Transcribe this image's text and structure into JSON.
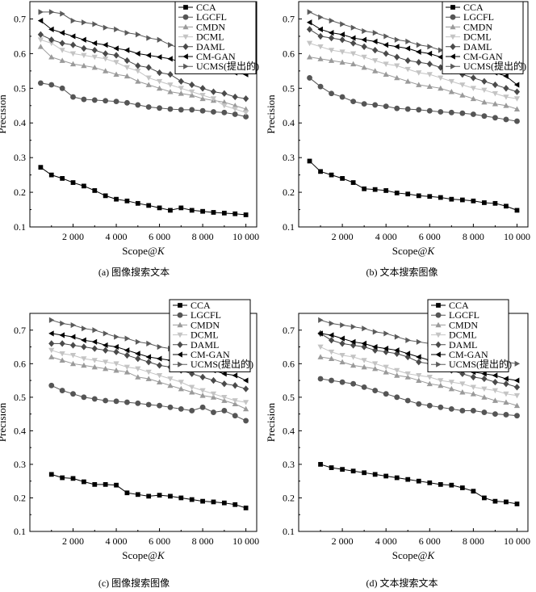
{
  "chart_data": [
    {
      "type": "line",
      "caption": "(a) 图像搜索文本",
      "xlabel": "Scope@K",
      "ylabel": "Precision",
      "xlim": [
        0,
        10500
      ],
      "ylim": [
        0.1,
        0.75
      ],
      "xticks": [
        "2 000",
        "4 000",
        "6 000",
        "8 000",
        "10 000"
      ],
      "yticks": [
        "0.1",
        "0.2",
        "0.3",
        "0.4",
        "0.5",
        "0.6",
        "0.7"
      ],
      "legend": "top-right",
      "grid": false,
      "x": [
        500,
        1000,
        1500,
        2000,
        2500,
        3000,
        3500,
        4000,
        4500,
        5000,
        5500,
        6000,
        6500,
        7000,
        7500,
        8000,
        8500,
        9000,
        9500,
        10000
      ],
      "series": [
        {
          "name": "CCA",
          "values": [
            0.272,
            0.25,
            0.24,
            0.228,
            0.218,
            0.205,
            0.19,
            0.18,
            0.175,
            0.168,
            0.162,
            0.155,
            0.148,
            0.155,
            0.148,
            0.145,
            0.142,
            0.14,
            0.138,
            0.135
          ]
        },
        {
          "name": "LGCFL",
          "values": [
            0.515,
            0.51,
            0.5,
            0.475,
            0.468,
            0.466,
            0.464,
            0.462,
            0.458,
            0.452,
            0.446,
            0.443,
            0.44,
            0.438,
            0.438,
            0.435,
            0.432,
            0.43,
            0.425,
            0.418
          ]
        },
        {
          "name": "CMDN",
          "values": [
            0.62,
            0.59,
            0.58,
            0.57,
            0.565,
            0.56,
            0.55,
            0.54,
            0.535,
            0.52,
            0.51,
            0.5,
            0.49,
            0.485,
            0.48,
            0.47,
            0.465,
            0.46,
            0.45,
            0.44
          ]
        },
        {
          "name": "DCML",
          "values": [
            0.64,
            0.63,
            0.61,
            0.6,
            0.595,
            0.59,
            0.585,
            0.575,
            0.56,
            0.55,
            0.53,
            0.52,
            0.51,
            0.5,
            0.49,
            0.48,
            0.47,
            0.45,
            0.44,
            0.43
          ]
        },
        {
          "name": "DAML",
          "values": [
            0.655,
            0.64,
            0.63,
            0.625,
            0.615,
            0.61,
            0.6,
            0.595,
            0.58,
            0.565,
            0.56,
            0.545,
            0.54,
            0.52,
            0.51,
            0.5,
            0.49,
            0.485,
            0.475,
            0.47
          ]
        },
        {
          "name": "CM-GAN",
          "values": [
            0.695,
            0.67,
            0.66,
            0.65,
            0.64,
            0.63,
            0.625,
            0.615,
            0.61,
            0.6,
            0.595,
            0.59,
            0.585,
            0.575,
            0.57,
            0.565,
            0.56,
            0.55,
            0.545,
            0.54
          ]
        },
        {
          "name": "UCMS(提出的)",
          "values": [
            0.72,
            0.72,
            0.715,
            0.695,
            0.69,
            0.685,
            0.675,
            0.67,
            0.66,
            0.655,
            0.645,
            0.64,
            0.625,
            0.615,
            0.605,
            0.6,
            0.595,
            0.585,
            0.58,
            0.575
          ]
        }
      ]
    },
    {
      "type": "line",
      "caption": "(b) 文本搜索图像",
      "xlabel": "Scope@K",
      "ylabel": "Precision",
      "xlim": [
        0,
        10500
      ],
      "ylim": [
        0.1,
        0.75
      ],
      "xticks": [
        "2 000",
        "4 000",
        "6 000",
        "8 000",
        "10 000"
      ],
      "yticks": [
        "0.1",
        "0.2",
        "0.3",
        "0.4",
        "0.5",
        "0.6",
        "0.7"
      ],
      "legend": "top-right",
      "grid": false,
      "x": [
        500,
        1000,
        1500,
        2000,
        2500,
        3000,
        3500,
        4000,
        4500,
        5000,
        5500,
        6000,
        6500,
        7000,
        7500,
        8000,
        8500,
        9000,
        9500,
        10000
      ],
      "series": [
        {
          "name": "CCA",
          "values": [
            0.29,
            0.26,
            0.25,
            0.24,
            0.228,
            0.21,
            0.208,
            0.205,
            0.198,
            0.195,
            0.19,
            0.188,
            0.185,
            0.18,
            0.178,
            0.175,
            0.17,
            0.168,
            0.16,
            0.148
          ]
        },
        {
          "name": "LGCFL",
          "values": [
            0.53,
            0.505,
            0.485,
            0.475,
            0.462,
            0.455,
            0.452,
            0.448,
            0.442,
            0.44,
            0.438,
            0.435,
            0.432,
            0.43,
            0.428,
            0.425,
            0.42,
            0.415,
            0.41,
            0.405
          ]
        },
        {
          "name": "CMDN",
          "values": [
            0.59,
            0.585,
            0.58,
            0.575,
            0.57,
            0.56,
            0.55,
            0.54,
            0.53,
            0.52,
            0.51,
            0.505,
            0.5,
            0.49,
            0.48,
            0.47,
            0.46,
            0.455,
            0.45,
            0.44
          ]
        },
        {
          "name": "DCML",
          "values": [
            0.63,
            0.62,
            0.61,
            0.605,
            0.6,
            0.59,
            0.58,
            0.57,
            0.565,
            0.555,
            0.545,
            0.54,
            0.53,
            0.52,
            0.51,
            0.5,
            0.495,
            0.485,
            0.475,
            0.47
          ]
        },
        {
          "name": "DAML",
          "values": [
            0.67,
            0.65,
            0.645,
            0.64,
            0.63,
            0.62,
            0.61,
            0.6,
            0.59,
            0.58,
            0.575,
            0.57,
            0.56,
            0.55,
            0.54,
            0.53,
            0.52,
            0.51,
            0.5,
            0.49
          ]
        },
        {
          "name": "CM-GAN",
          "values": [
            0.69,
            0.67,
            0.66,
            0.655,
            0.645,
            0.64,
            0.635,
            0.625,
            0.62,
            0.615,
            0.605,
            0.6,
            0.59,
            0.58,
            0.575,
            0.565,
            0.555,
            0.545,
            0.535,
            0.51
          ]
        },
        {
          "name": "UCMS(提出的)",
          "values": [
            0.72,
            0.705,
            0.695,
            0.685,
            0.675,
            0.665,
            0.66,
            0.65,
            0.64,
            0.635,
            0.625,
            0.62,
            0.61,
            0.605,
            0.6,
            0.595,
            0.59,
            0.58,
            0.575,
            0.57
          ]
        }
      ]
    },
    {
      "type": "line",
      "caption": "(c) 图像搜索图像",
      "xlabel": "Scope@K",
      "ylabel": "Precision",
      "xlim": [
        0,
        10500
      ],
      "ylim": [
        0.1,
        0.75
      ],
      "xticks": [
        "2 000",
        "4 000",
        "6 000",
        "8 000",
        "10 000"
      ],
      "yticks": [
        "0.1",
        "0.2",
        "0.3",
        "0.4",
        "0.5",
        "0.6",
        "0.7"
      ],
      "legend": "top-right",
      "grid": false,
      "x": [
        1000,
        1500,
        2000,
        2500,
        3000,
        3500,
        4000,
        4500,
        5000,
        5500,
        6000,
        6500,
        7000,
        7500,
        8000,
        8500,
        9000,
        9500,
        10000
      ],
      "series": [
        {
          "name": "CCA",
          "values": [
            0.27,
            0.26,
            0.258,
            0.248,
            0.24,
            0.24,
            0.238,
            0.215,
            0.21,
            0.205,
            0.208,
            0.205,
            0.2,
            0.195,
            0.19,
            0.188,
            0.185,
            0.18,
            0.17
          ]
        },
        {
          "name": "LGCFL",
          "values": [
            0.535,
            0.52,
            0.51,
            0.5,
            0.495,
            0.49,
            0.488,
            0.485,
            0.482,
            0.478,
            0.475,
            0.47,
            0.465,
            0.46,
            0.47,
            0.455,
            0.46,
            0.445,
            0.43
          ]
        },
        {
          "name": "CMDN",
          "values": [
            0.62,
            0.61,
            0.6,
            0.595,
            0.59,
            0.585,
            0.58,
            0.575,
            0.56,
            0.555,
            0.545,
            0.535,
            0.525,
            0.515,
            0.505,
            0.5,
            0.49,
            0.48,
            0.465
          ]
        },
        {
          "name": "DCML",
          "values": [
            0.64,
            0.63,
            0.625,
            0.615,
            0.61,
            0.605,
            0.6,
            0.59,
            0.585,
            0.575,
            0.565,
            0.555,
            0.545,
            0.53,
            0.52,
            0.51,
            0.5,
            0.49,
            0.485
          ]
        },
        {
          "name": "DAML",
          "values": [
            0.66,
            0.66,
            0.655,
            0.65,
            0.645,
            0.64,
            0.635,
            0.625,
            0.615,
            0.605,
            0.595,
            0.59,
            0.58,
            0.57,
            0.56,
            0.55,
            0.54,
            0.535,
            0.525
          ]
        },
        {
          "name": "CM-GAN",
          "values": [
            0.69,
            0.685,
            0.68,
            0.67,
            0.665,
            0.655,
            0.65,
            0.64,
            0.63,
            0.62,
            0.615,
            0.61,
            0.6,
            0.595,
            0.585,
            0.58,
            0.57,
            0.565,
            0.55
          ]
        },
        {
          "name": "UCMS(提出的)",
          "values": [
            0.73,
            0.72,
            0.715,
            0.705,
            0.7,
            0.69,
            0.68,
            0.675,
            0.665,
            0.66,
            0.65,
            0.645,
            0.635,
            0.63,
            0.625,
            0.62,
            0.61,
            0.605,
            0.6
          ]
        }
      ]
    },
    {
      "type": "line",
      "caption": "(d) 文本搜索文本",
      "xlabel": "Scope@K",
      "ylabel": "Precision",
      "xlim": [
        0,
        10500
      ],
      "ylim": [
        0.1,
        0.75
      ],
      "xticks": [
        "2 000",
        "4 000",
        "6 000",
        "8 000",
        "10 000"
      ],
      "yticks": [
        "0.1",
        "0.2",
        "0.3",
        "0.4",
        "0.5",
        "0.6",
        "0.7"
      ],
      "legend": "top-right",
      "grid": false,
      "x": [
        1000,
        1500,
        2000,
        2500,
        3000,
        3500,
        4000,
        4500,
        5000,
        5500,
        6000,
        6500,
        7000,
        7500,
        8000,
        8500,
        9000,
        9500,
        10000
      ],
      "series": [
        {
          "name": "CCA",
          "values": [
            0.3,
            0.29,
            0.285,
            0.28,
            0.275,
            0.27,
            0.265,
            0.26,
            0.255,
            0.25,
            0.245,
            0.24,
            0.238,
            0.23,
            0.22,
            0.2,
            0.19,
            0.188,
            0.182
          ]
        },
        {
          "name": "LGCFL",
          "values": [
            0.555,
            0.55,
            0.545,
            0.54,
            0.53,
            0.52,
            0.51,
            0.5,
            0.49,
            0.48,
            0.475,
            0.47,
            0.465,
            0.46,
            0.46,
            0.455,
            0.45,
            0.448,
            0.445
          ]
        },
        {
          "name": "CMDN",
          "values": [
            0.62,
            0.615,
            0.605,
            0.595,
            0.59,
            0.585,
            0.575,
            0.565,
            0.56,
            0.55,
            0.54,
            0.535,
            0.525,
            0.515,
            0.51,
            0.5,
            0.49,
            0.485,
            0.475
          ]
        },
        {
          "name": "DCML",
          "values": [
            0.65,
            0.635,
            0.625,
            0.62,
            0.61,
            0.6,
            0.59,
            0.58,
            0.57,
            0.565,
            0.56,
            0.55,
            0.545,
            0.54,
            0.53,
            0.525,
            0.52,
            0.51,
            0.505
          ]
        },
        {
          "name": "DAML",
          "values": [
            0.69,
            0.67,
            0.66,
            0.655,
            0.65,
            0.64,
            0.635,
            0.63,
            0.62,
            0.605,
            0.6,
            0.59,
            0.58,
            0.57,
            0.56,
            0.555,
            0.545,
            0.54,
            0.53
          ]
        },
        {
          "name": "CM-GAN",
          "values": [
            0.69,
            0.685,
            0.675,
            0.665,
            0.66,
            0.65,
            0.645,
            0.64,
            0.63,
            0.62,
            0.61,
            0.6,
            0.59,
            0.585,
            0.575,
            0.57,
            0.565,
            0.555,
            0.55
          ]
        },
        {
          "name": "UCMS(提出的)",
          "values": [
            0.73,
            0.72,
            0.715,
            0.71,
            0.705,
            0.695,
            0.69,
            0.68,
            0.67,
            0.665,
            0.66,
            0.655,
            0.645,
            0.635,
            0.63,
            0.625,
            0.615,
            0.605,
            0.6
          ]
        }
      ]
    }
  ],
  "styles": {
    "colors": [
      "#000000",
      "#555555",
      "#9a9a9a",
      "#c4c4c4",
      "#4a4a4a",
      "#000000",
      "#5a5a5a"
    ],
    "markers": [
      "square",
      "circle",
      "triangle-up",
      "triangle-down",
      "diamond",
      "triangle-left",
      "triangle-right"
    ]
  }
}
